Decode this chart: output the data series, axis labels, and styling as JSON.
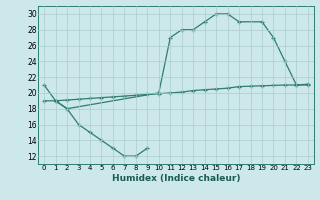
{
  "color": "#2e7d6e",
  "bg_color": "#cce8ea",
  "grid_color": "#aaccce",
  "xlabel": "Humidex (Indice chaleur)",
  "ylim": [
    11,
    31
  ],
  "xlim": [
    -0.5,
    23.5
  ],
  "yticks": [
    12,
    14,
    16,
    18,
    20,
    22,
    24,
    26,
    28,
    30
  ],
  "xticks": [
    0,
    1,
    2,
    3,
    4,
    5,
    6,
    7,
    8,
    9,
    10,
    11,
    12,
    13,
    14,
    15,
    16,
    17,
    18,
    19,
    20,
    21,
    22,
    23
  ],
  "line1_x": [
    0,
    1,
    2,
    10,
    11,
    12,
    13,
    14,
    15,
    16,
    17,
    19,
    20,
    21,
    22,
    23
  ],
  "line1_y": [
    21,
    19,
    18,
    20,
    27,
    28,
    28,
    29,
    30,
    30,
    29,
    29,
    27,
    24,
    21,
    21
  ],
  "line2_x": [
    0,
    1,
    2,
    3,
    4,
    5,
    6,
    7,
    8,
    9,
    10,
    11,
    12,
    13,
    14,
    15,
    16,
    17,
    18,
    19,
    20,
    21,
    22,
    23
  ],
  "line2_y": [
    19,
    19,
    19.1,
    19.2,
    19.3,
    19.4,
    19.5,
    19.6,
    19.7,
    19.8,
    19.9,
    20.0,
    20.1,
    20.3,
    20.4,
    20.5,
    20.6,
    20.8,
    20.85,
    20.9,
    20.95,
    21.0,
    21.0,
    21.1
  ],
  "line3_x": [
    1,
    2,
    3,
    4,
    5,
    6,
    7,
    8,
    9
  ],
  "line3_y": [
    19,
    18,
    16,
    15,
    14,
    13,
    12,
    12,
    13
  ]
}
